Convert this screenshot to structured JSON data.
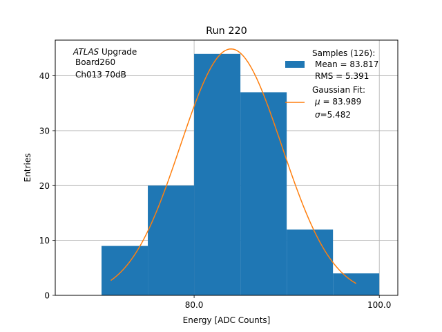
{
  "chart_data": {
    "type": "bar",
    "title": "Run 220",
    "xlabel": "Energy [ADC Counts]",
    "ylabel": "Entries",
    "xlim": [
      65,
      102
    ],
    "ylim": [
      0,
      46.5
    ],
    "xticks": [
      80,
      100
    ],
    "xtick_labels": [
      "80.0",
      "100.0"
    ],
    "yticks": [
      0,
      10,
      20,
      30,
      40
    ],
    "ytick_labels": [
      "0",
      "10",
      "20",
      "30",
      "40"
    ],
    "grid": true,
    "legend_position": "top-right",
    "bins": [
      {
        "x0": 70,
        "x1": 75,
        "count": 9
      },
      {
        "x0": 75,
        "x1": 80,
        "count": 20
      },
      {
        "x0": 80,
        "x1": 85,
        "count": 44
      },
      {
        "x0": 85,
        "x1": 90,
        "count": 37
      },
      {
        "x0": 90,
        "x1": 95,
        "count": 12
      },
      {
        "x0": 95,
        "x1": 100,
        "count": 4
      }
    ],
    "fit": {
      "name": "Gaussian Fit",
      "mu": 83.989,
      "sigma": 5.482,
      "amplitude": 44.9,
      "x_range": [
        71,
        97.5
      ]
    },
    "annotation": {
      "line1_italic": "ATLAS",
      "line1_rest": " Upgrade",
      "line2": "Board260",
      "line3": "Ch013 70dB"
    },
    "legend": {
      "samples_line1": "Samples (126):",
      "samples_line2": "Mean = 83.817",
      "samples_line3": "RMS = 5.391",
      "fit_line1": "Gaussian Fit:",
      "fit_line2_symbol": "μ",
      "fit_line2_rest": " = 83.989",
      "fit_line3_symbol": "σ",
      "fit_line3_rest": "=5.482"
    },
    "colors": {
      "bars": "#1f77b4",
      "fit": "#ff7f0e",
      "grid": "#b0b0b0"
    }
  }
}
